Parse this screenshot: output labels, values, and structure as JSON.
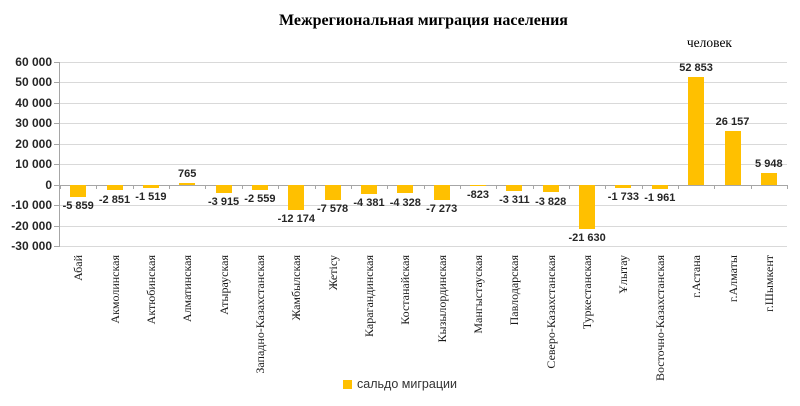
{
  "chart_data": {
    "type": "bar",
    "title": "Межрегиональная миграция населения",
    "units_label": "человек",
    "legend": [
      {
        "name": "сальдо миграции",
        "color": "#FFC000"
      }
    ],
    "legend_position": "bottom",
    "bar_color": "#FFC000",
    "grid": true,
    "ylim": [
      -30000,
      60000
    ],
    "y_tick_step": 10000,
    "y_tick_labels": [
      "60 000",
      "50 000",
      "40 000",
      "30 000",
      "20 000",
      "10 000",
      "0",
      "-10 000",
      "-20 000",
      "-30 000"
    ],
    "categories": [
      "Абай",
      "Акмолинская",
      "Актюбинская",
      "Алматинская",
      "Атырауская",
      "Западно-Казахстанская",
      "Жамбылская",
      "Жетісу",
      "Карагандинская",
      "Костанайская",
      "Кызылординская",
      "Мангыстауская",
      "Павлодарская",
      "Северо-Казахстанская",
      "Туркестанская",
      "Ұлытау",
      "Восточно-Казахстанская",
      "г.Астана",
      "г.Алматы",
      "г.Шымкент"
    ],
    "values": [
      -5859,
      -2851,
      -1519,
      765,
      -3915,
      -2559,
      -12174,
      -7578,
      -4381,
      -4328,
      -7273,
      -823,
      -3311,
      -3828,
      -21630,
      -1733,
      -1961,
      52853,
      26157,
      5948
    ],
    "value_labels": [
      "-5 859",
      "-2 851",
      "-1 519",
      "765",
      "-3 915",
      "-2 559",
      "-12 174",
      "-7 578",
      "-4 381",
      "-4 328",
      "-7 273",
      "-823",
      "-3 311",
      "-3 828",
      "-21 630",
      "-1 733",
      "-1 961",
      "52 853",
      "26 157",
      "5 948"
    ]
  }
}
